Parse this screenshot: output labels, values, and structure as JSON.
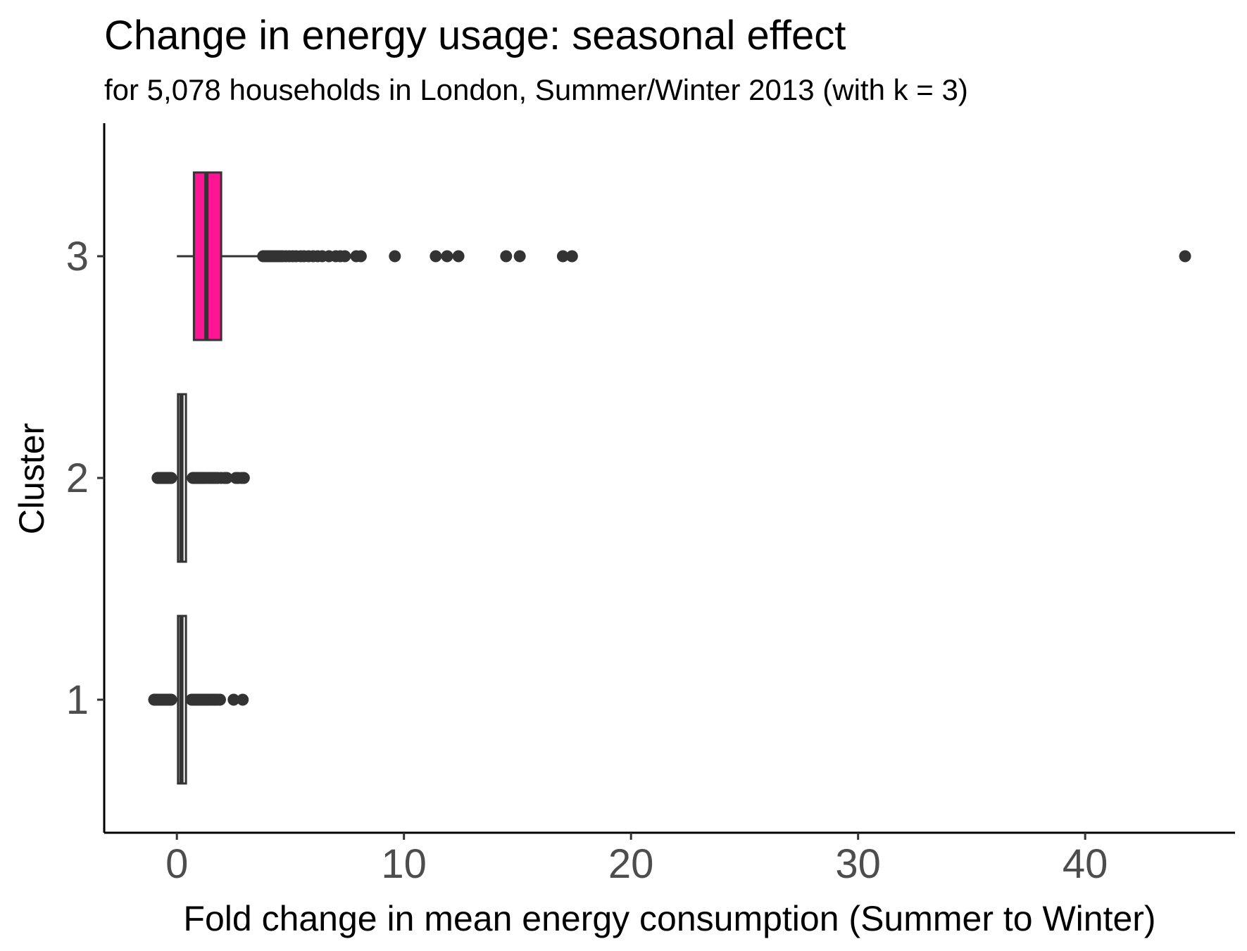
{
  "chart_data": {
    "type": "boxplot",
    "orientation": "horizontal",
    "title": "Change in energy usage: seasonal effect",
    "subtitle": "for 5,078 households in London, Summer/Winter 2013 (with k = 3)",
    "xlabel": "Fold change in mean energy consumption (Summer to Winter)",
    "ylabel": "Cluster",
    "xlim": [
      -3.2,
      46.6
    ],
    "x_ticks": [
      0,
      10,
      20,
      30,
      40
    ],
    "x_tick_labels": [
      "0",
      "10",
      "20",
      "30",
      "40"
    ],
    "categories": [
      "1",
      "2",
      "3"
    ],
    "grid": false,
    "legend": "none",
    "colors": {
      "cluster_3_fill": "#ff1493",
      "cluster_1_fill": "#ffffff",
      "cluster_2_fill": "#ffffff",
      "box_outline": "#333333",
      "points": "#333333",
      "axis": "#000000",
      "tick_text": "#4d4d4d"
    },
    "series": [
      {
        "category": "1",
        "box": {
          "q1": 0.05,
          "median": 0.2,
          "q3": 0.4,
          "whisker_low": 0.05,
          "whisker_high": 0.4
        },
        "outliers": [
          -1.0,
          -0.95,
          -0.9,
          -0.85,
          -0.8,
          -0.75,
          -0.7,
          -0.65,
          -0.6,
          -0.55,
          -0.5,
          -0.45,
          -0.4,
          -0.35,
          -0.3,
          -0.25,
          0.65,
          0.7,
          0.75,
          0.8,
          0.85,
          0.9,
          0.95,
          1.0,
          1.05,
          1.1,
          1.15,
          1.2,
          1.25,
          1.3,
          1.35,
          1.4,
          1.5,
          1.55,
          1.6,
          1.65,
          1.7,
          1.8,
          1.9,
          2.5,
          2.9
        ]
      },
      {
        "category": "2",
        "box": {
          "q1": 0.05,
          "median": 0.2,
          "q3": 0.4,
          "whisker_low": 0.05,
          "whisker_high": 0.4
        },
        "outliers": [
          -0.85,
          -0.8,
          -0.75,
          -0.7,
          -0.65,
          -0.6,
          -0.55,
          -0.5,
          -0.45,
          -0.4,
          -0.35,
          -0.3,
          -0.25,
          0.7,
          0.75,
          0.8,
          0.85,
          0.9,
          0.95,
          1.0,
          1.05,
          1.1,
          1.15,
          1.2,
          1.3,
          1.4,
          1.5,
          1.6,
          1.7,
          1.8,
          1.95,
          2.1,
          2.2,
          2.6,
          2.7,
          2.85,
          2.95
        ]
      },
      {
        "category": "3",
        "box": {
          "q1": 0.75,
          "median": 1.3,
          "q3": 1.95,
          "whisker_low": 0.0,
          "whisker_high": 3.7
        },
        "outliers": [
          3.8,
          3.9,
          4.0,
          4.05,
          4.15,
          4.25,
          4.35,
          4.45,
          4.55,
          4.65,
          4.8,
          4.95,
          5.1,
          5.25,
          5.45,
          5.6,
          5.8,
          6.0,
          6.2,
          6.4,
          6.7,
          7.0,
          7.2,
          7.4,
          7.9,
          8.1,
          9.6,
          11.4,
          11.9,
          12.4,
          14.5,
          15.1,
          17.0,
          17.4,
          44.4
        ]
      }
    ]
  }
}
